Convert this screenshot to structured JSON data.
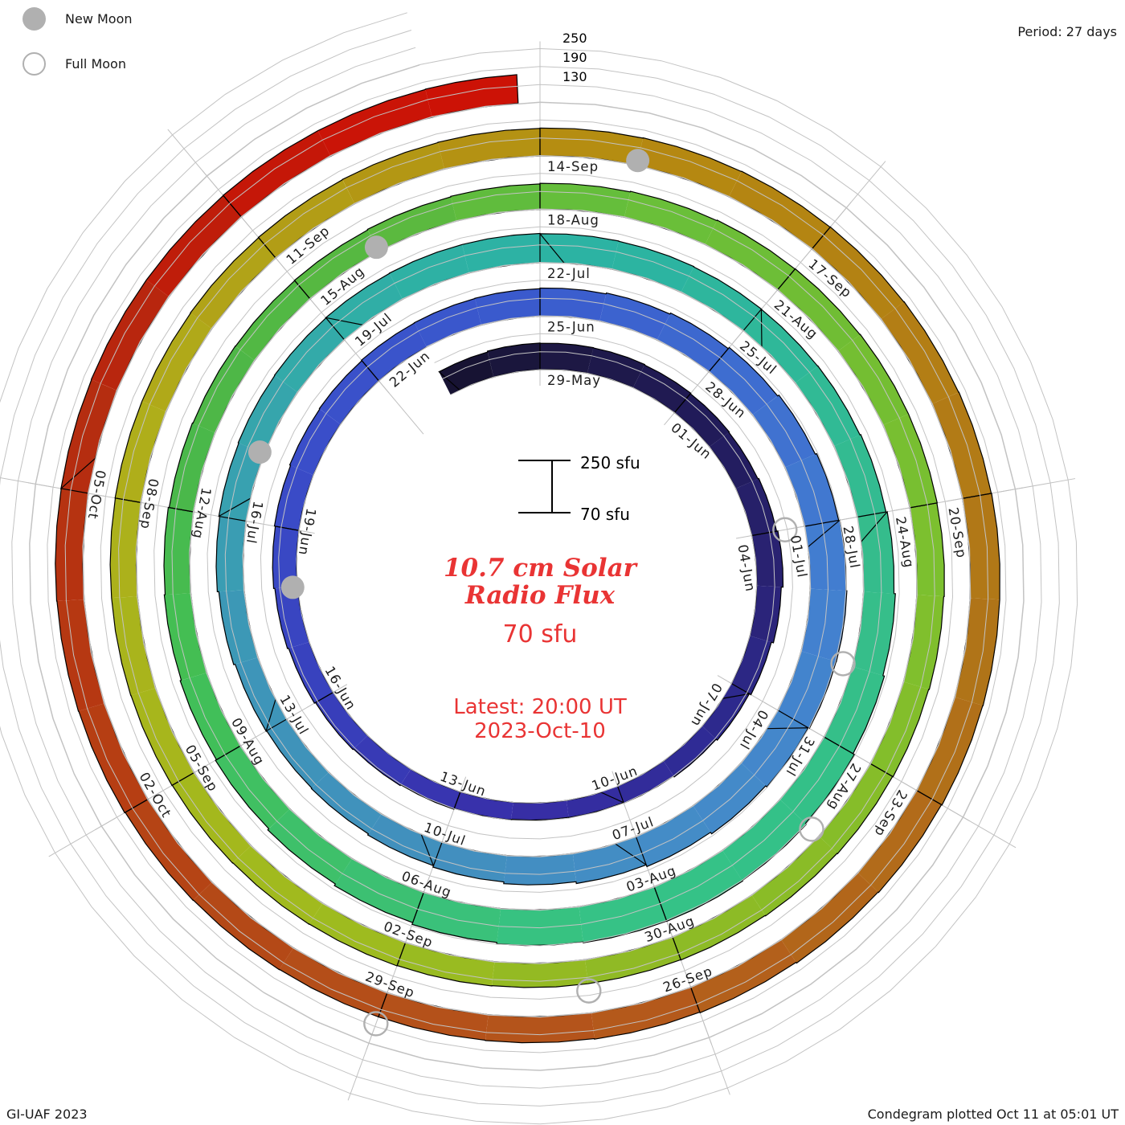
{
  "legend": {
    "new_moon_label": "New Moon",
    "full_moon_label": "Full Moon"
  },
  "period_label": "Period: 27 days",
  "footer": {
    "credit": "GI-UAF 2023",
    "plotted": "Condegram plotted Oct 11 at 05:01 UT"
  },
  "center_text": {
    "title_line1": "10.7 cm Solar",
    "title_line2": "Radio Flux",
    "base_flux_label": "70 sfu",
    "latest_line1": "Latest: 20:00 UT",
    "latest_line2": "2023-Oct-10",
    "scalebar_top_label": "250 sfu",
    "scalebar_bottom_label": "70 sfu"
  },
  "radial_scale_labels": [
    "250",
    "190",
    "130"
  ],
  "chart_data": {
    "type": "spiral-polar-bar-condegram",
    "title": "10.7 cm Solar Radio Flux",
    "units": "sfu",
    "period_days": 27,
    "flux_baseline": 70,
    "gridline_levels_sfu": [
      70,
      130,
      190,
      250
    ],
    "start_date": "2023-05-27",
    "start_day_index": -2,
    "latest": "2023-Oct-10 20:00 UT",
    "end_day_index": 134.8,
    "day0_date": "2023-05-29",
    "daily_flux_sfu": [
      156,
      159,
      158,
      157,
      155,
      153,
      151,
      154,
      158,
      152,
      145,
      139,
      134,
      130,
      128,
      127,
      129,
      132,
      135,
      138,
      142,
      146,
      150,
      153,
      156,
      158,
      160,
      161,
      162,
      164,
      167,
      171,
      176,
      181,
      186,
      190,
      193,
      192,
      188,
      183,
      177,
      171,
      165,
      159,
      154,
      150,
      148,
      150,
      155,
      160,
      163,
      165,
      166,
      167,
      168,
      168,
      167,
      166,
      165,
      164,
      165,
      168,
      172,
      177,
      182,
      187,
      191,
      193,
      192,
      189,
      184,
      178,
      172,
      167,
      163,
      159,
      156,
      153,
      151,
      150,
      151,
      153,
      155,
      157,
      159,
      161,
      162,
      163,
      163,
      162,
      160,
      158,
      156,
      154,
      152,
      151,
      151,
      152,
      153,
      154,
      155,
      156,
      157,
      157,
      158,
      158,
      159,
      160,
      161,
      162,
      163,
      164,
      165,
      166,
      167,
      168,
      169,
      169,
      168,
      166,
      164,
      161,
      159,
      157,
      156,
      156,
      157,
      158,
      160,
      161,
      162,
      163,
      164,
      164,
      165,
      165,
      166
    ],
    "tick_labels": [
      "29-May",
      "01-Jun",
      "04-Jun",
      "07-Jun",
      "10-Jun",
      "13-Jun",
      "16-Jun",
      "19-Jun",
      "22-Jun",
      "25-Jun",
      "28-Jun",
      "01-Jul",
      "04-Jul",
      "07-Jul",
      "10-Jul",
      "13-Jul",
      "16-Jul",
      "19-Jul",
      "22-Jul",
      "25-Jul",
      "28-Jul",
      "31-Jul",
      "03-Aug",
      "06-Aug",
      "09-Aug",
      "12-Aug",
      "15-Aug",
      "18-Aug",
      "21-Aug",
      "24-Aug",
      "27-Aug",
      "30-Aug",
      "02-Sep",
      "05-Sep",
      "08-Sep",
      "11-Sep",
      "14-Sep",
      "17-Sep",
      "20-Sep",
      "23-Sep",
      "26-Sep",
      "29-Sep",
      "02-Oct",
      "05-Oct"
    ],
    "tick_step_days": 3,
    "moons": [
      {
        "type": "full",
        "date": "2023-06-04",
        "day_index": 6
      },
      {
        "type": "new",
        "date": "2023-06-18",
        "day_index": 20
      },
      {
        "type": "full",
        "date": "2023-07-03",
        "day_index": 35
      },
      {
        "type": "new",
        "date": "2023-07-17",
        "day_index": 49
      },
      {
        "type": "full",
        "date": "2023-08-01",
        "day_index": 64
      },
      {
        "type": "new",
        "date": "2023-08-16",
        "day_index": 79
      },
      {
        "type": "full",
        "date": "2023-08-31",
        "day_index": 94
      },
      {
        "type": "new",
        "date": "2023-09-15",
        "day_index": 109
      },
      {
        "type": "full",
        "date": "2023-09-29",
        "day_index": 123
      }
    ],
    "colors": {
      "gridline": "#c3c3c3",
      "radial_tick": "#bdbdbd",
      "bar_outline": "#000000",
      "label_text": "#1c1c1c",
      "accent_red_text": "#e93434",
      "moon_gray": "#b0b0b0",
      "colormap_stops": [
        [
          -2,
          "#15112e"
        ],
        [
          0,
          "#1c1740"
        ],
        [
          4,
          "#221c5c"
        ],
        [
          7,
          "#2a2375"
        ],
        [
          10,
          "#2e2a92"
        ],
        [
          14,
          "#382fa8"
        ],
        [
          18,
          "#3840bd"
        ],
        [
          22,
          "#3a4cc8"
        ],
        [
          27,
          "#3a5cce"
        ],
        [
          31,
          "#3f6fd0"
        ],
        [
          34,
          "#4380d0"
        ],
        [
          38,
          "#448bc8"
        ],
        [
          42,
          "#428fbe"
        ],
        [
          46,
          "#3d96b8"
        ],
        [
          49,
          "#37a3ae"
        ],
        [
          52,
          "#2fb0a4"
        ],
        [
          55,
          "#2bb3a3"
        ],
        [
          58,
          "#30b997"
        ],
        [
          61,
          "#36bd8a"
        ],
        [
          64,
          "#33c188"
        ],
        [
          67,
          "#36c285"
        ],
        [
          70,
          "#3dc06e"
        ],
        [
          73,
          "#42bf55"
        ],
        [
          76,
          "#4cb748"
        ],
        [
          79,
          "#58b840"
        ],
        [
          82,
          "#68bf3a"
        ],
        [
          85,
          "#72bd33"
        ],
        [
          88,
          "#7ec02e"
        ],
        [
          91,
          "#88bc28"
        ],
        [
          94,
          "#92ba24"
        ],
        [
          97,
          "#a0bb1e"
        ],
        [
          100,
          "#a8b51c"
        ],
        [
          103,
          "#b0ac1a"
        ],
        [
          106,
          "#b29a15"
        ],
        [
          109,
          "#b58a10"
        ],
        [
          112,
          "#b38014"
        ],
        [
          115,
          "#b07618"
        ],
        [
          118,
          "#b2691a"
        ],
        [
          121,
          "#b4561b"
        ],
        [
          124,
          "#b44c18"
        ],
        [
          127,
          "#b63b12"
        ],
        [
          130,
          "#b52a10"
        ],
        [
          132,
          "#c21908"
        ],
        [
          134,
          "#cc1206"
        ]
      ]
    },
    "layout": {
      "legend_position": "top-left",
      "direction": "clockwise",
      "start_angle_deg_from_top": 0
    }
  }
}
